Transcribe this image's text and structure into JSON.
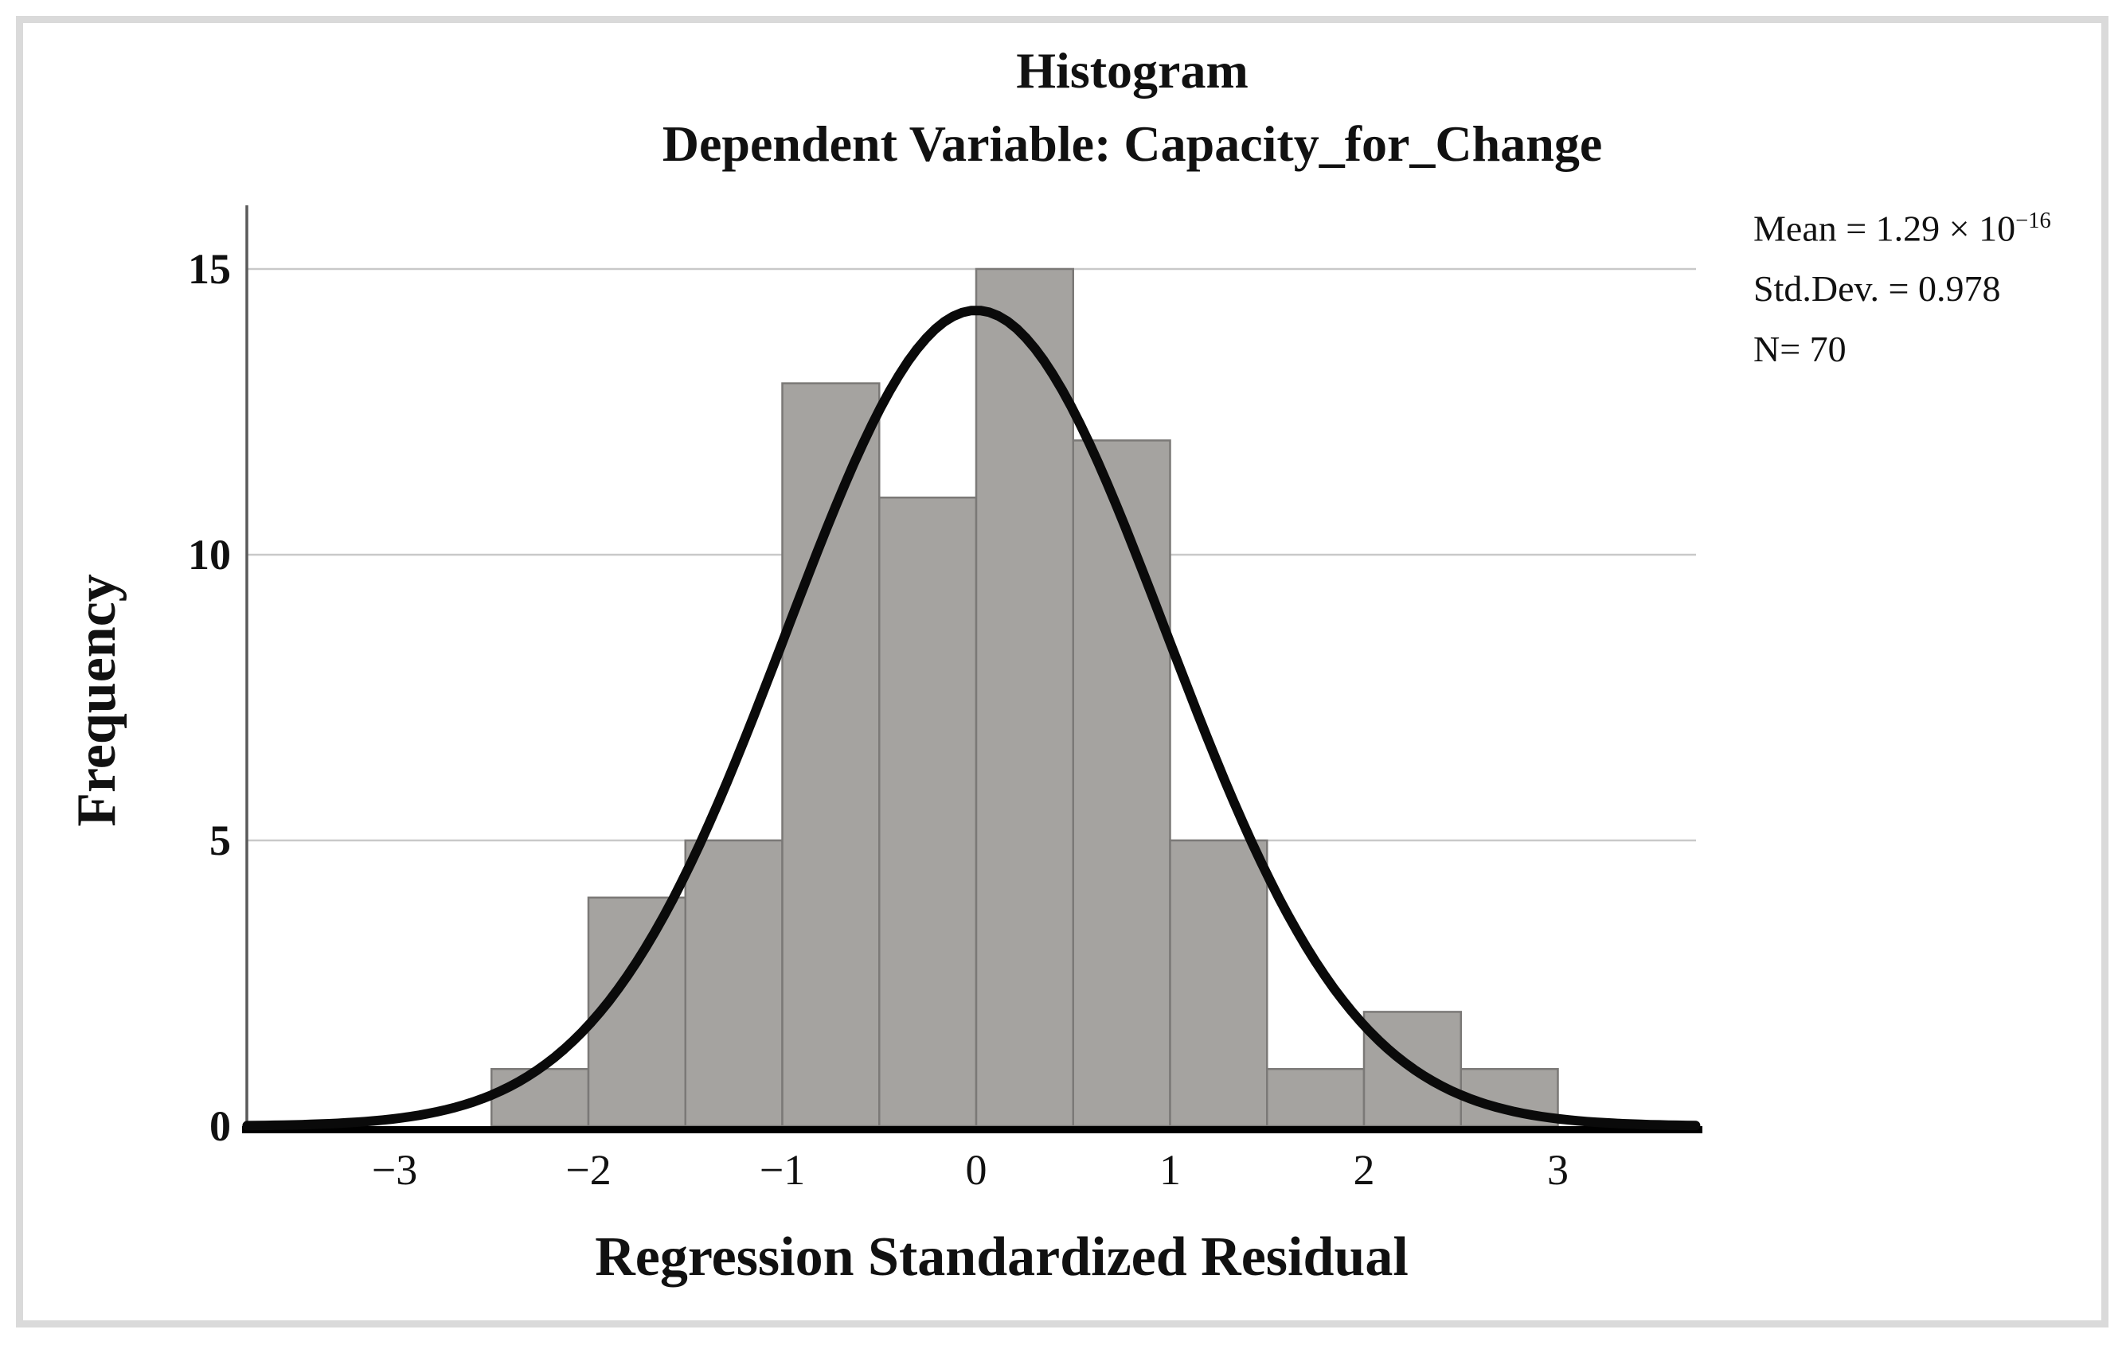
{
  "figure": {
    "background": "#ffffff",
    "border_color": "#dadada"
  },
  "title": {
    "line1": "Histogram",
    "line2": "Dependent Variable: Capacity_for_Change"
  },
  "stats": {
    "mean_prefix": "Mean = 1.29 × 10",
    "mean_exponent": "−16",
    "std_dev": "Std.Dev. = 0.978",
    "n": "N= 70"
  },
  "chart_data": {
    "type": "bar",
    "subtype": "histogram-with-normal-curve",
    "title": "Histogram",
    "subtitle": "Dependent Variable: Capacity_for_Change",
    "xlabel": "Regression Standardized Residual",
    "ylabel": "Frequency",
    "bin_width": 0.5,
    "bin_edges": [
      -2.5,
      -2.0,
      -1.5,
      -1.0,
      -0.5,
      0.0,
      0.5,
      1.0,
      1.5,
      2.0,
      2.5,
      3.0
    ],
    "frequencies": [
      1,
      4,
      5,
      13,
      11,
      15,
      12,
      5,
      1,
      2,
      1
    ],
    "x_ticks": [
      -3,
      -2,
      -1,
      0,
      1,
      2,
      3
    ],
    "x_tick_labels": [
      "−3",
      "−2",
      "−1",
      "0",
      "1",
      "2",
      "3"
    ],
    "y_ticks": [
      0,
      5,
      10,
      15
    ],
    "y_tick_labels": [
      "0",
      "5",
      "10",
      "15"
    ],
    "xlim": [
      -3.76,
      3.71
    ],
    "ylim": [
      0,
      16.1
    ],
    "grid": "horizontal",
    "normal_curve": {
      "mean": 0,
      "sd": 0.978,
      "n": 70
    },
    "annotations": [
      "Mean = 1.29 × 10−16",
      "Std.Dev. = 0.978",
      "N= 70"
    ],
    "legend_position": "top-right",
    "colors": {
      "bar_fill": "#a5a3a0",
      "bar_edge": "#7b7977",
      "curve": "#0a0a0a",
      "gridline": "#c9c9c9",
      "axis_line": "#000000",
      "spine": "#5a5a5a",
      "text": "#111111"
    }
  }
}
